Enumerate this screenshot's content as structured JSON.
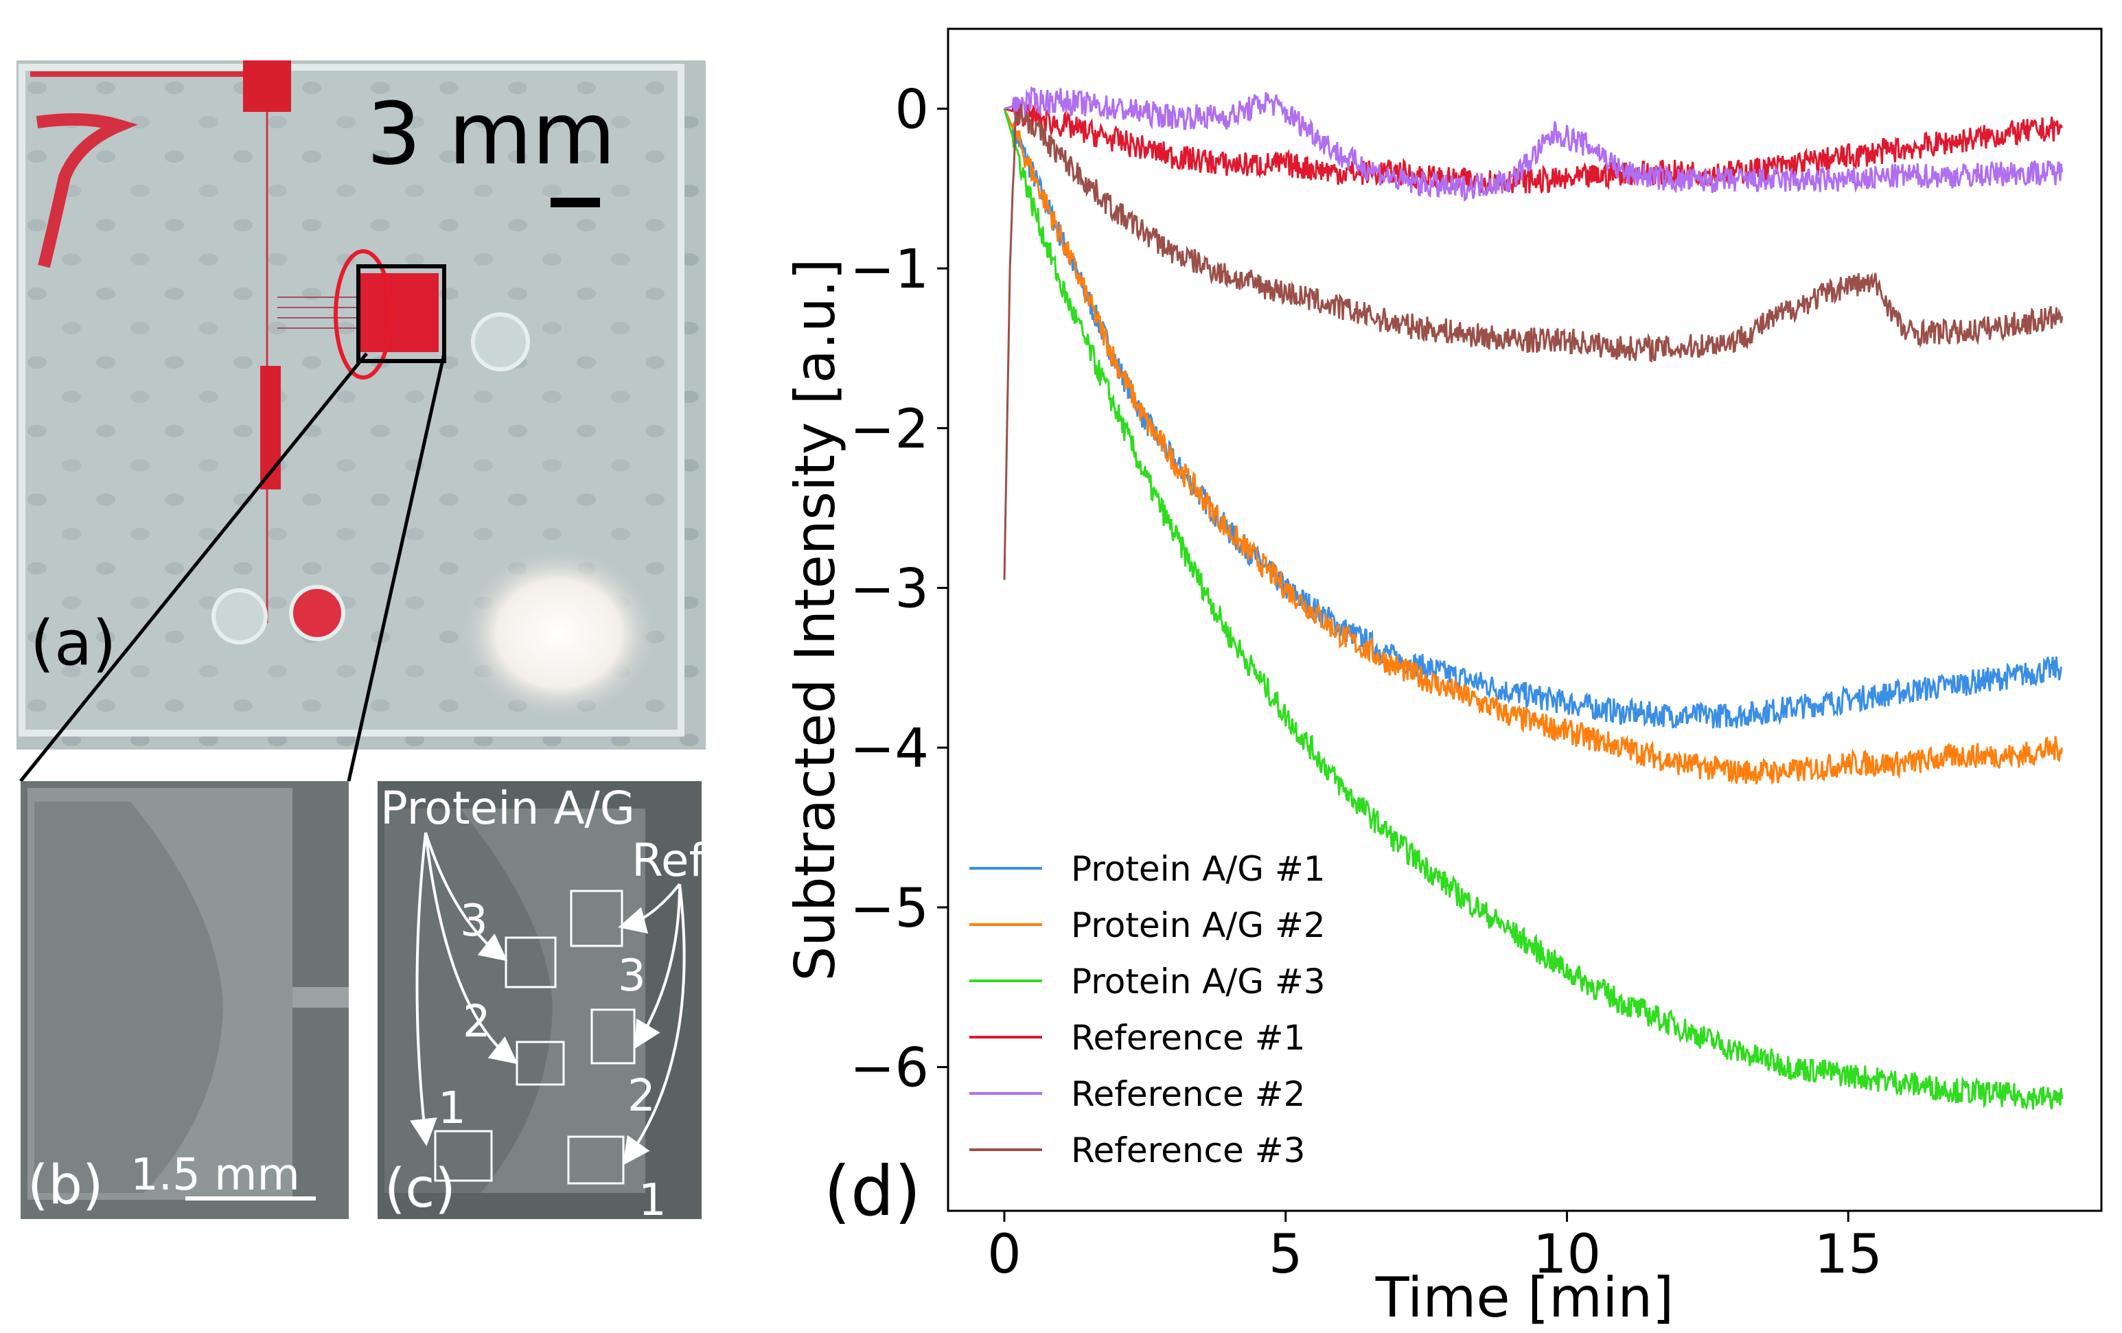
{
  "photo_panels": {
    "a": {
      "label": "(a)",
      "scale_text": "3 mm"
    },
    "b": {
      "label": "(b)",
      "scale_text": "1.5 mm"
    },
    "c": {
      "label": "(c)",
      "protein_label": "Protein A/G",
      "ref_label": "Ref",
      "protein_numbers": [
        "3",
        "2",
        "1"
      ],
      "ref_numbers": [
        "3",
        "2",
        "1"
      ]
    }
  },
  "colors": {
    "blue": "#3a8ee6",
    "orange": "#ff7f0e",
    "green": "#2fdc1e",
    "red": "#e0182e",
    "purple": "#b06ef2",
    "brown": "#9a5048"
  },
  "chart_data": {
    "type": "line",
    "panel_label": "(d)",
    "xlabel": "Time [min]",
    "ylabel": "Subtracted Intensity [a.u.]",
    "xlim": [
      -1,
      19.5
    ],
    "ylim": [
      -6.9,
      0.5
    ],
    "xticks": [
      0,
      5,
      10,
      15
    ],
    "yticks": [
      0,
      -1,
      -2,
      -3,
      -4,
      -5,
      -6
    ],
    "xtick_labels": [
      "0",
      "5",
      "10",
      "15"
    ],
    "ytick_labels": [
      "0",
      "−1",
      "−2",
      "−3",
      "−4",
      "−5",
      "−6"
    ],
    "grid": false,
    "legend_position": "bottom-left",
    "series": [
      {
        "name": "Protein A/G #1",
        "color": "#3a8ee6",
        "x": [
          0,
          0.5,
          1,
          1.5,
          2,
          2.5,
          3,
          4,
          5,
          6,
          7,
          8,
          9,
          10,
          11,
          12,
          13,
          14,
          15,
          16,
          17,
          18,
          18.8
        ],
        "y": [
          0,
          -0.4,
          -0.8,
          -1.2,
          -1.6,
          -1.95,
          -2.2,
          -2.65,
          -3.0,
          -3.25,
          -3.45,
          -3.55,
          -3.65,
          -3.72,
          -3.78,
          -3.8,
          -3.8,
          -3.75,
          -3.7,
          -3.65,
          -3.6,
          -3.55,
          -3.5
        ]
      },
      {
        "name": "Protein A/G #2",
        "color": "#ff7f0e",
        "x": [
          0,
          0.5,
          1,
          1.5,
          2,
          2.5,
          3,
          4,
          5,
          6,
          7,
          8,
          9,
          10,
          11,
          12,
          13,
          14,
          15,
          16,
          17,
          18,
          18.8
        ],
        "y": [
          0,
          -0.4,
          -0.8,
          -1.2,
          -1.6,
          -1.95,
          -2.2,
          -2.65,
          -3.0,
          -3.3,
          -3.5,
          -3.65,
          -3.8,
          -3.9,
          -4.0,
          -4.1,
          -4.15,
          -4.15,
          -4.1,
          -4.1,
          -4.05,
          -4.05,
          -4.0
        ]
      },
      {
        "name": "Protein A/G #3",
        "color": "#2fdc1e",
        "x": [
          0,
          0.5,
          1,
          1.5,
          2,
          2.5,
          3,
          4,
          5,
          6,
          7,
          8,
          9,
          10,
          11,
          12,
          13,
          14,
          15,
          16,
          17,
          18,
          18.8
        ],
        "y": [
          0,
          -0.6,
          -1.1,
          -1.5,
          -1.9,
          -2.3,
          -2.65,
          -3.3,
          -3.8,
          -4.25,
          -4.6,
          -4.9,
          -5.15,
          -5.4,
          -5.6,
          -5.75,
          -5.9,
          -6.0,
          -6.05,
          -6.1,
          -6.15,
          -6.18,
          -6.2
        ]
      },
      {
        "name": "Reference #1",
        "color": "#e0182e",
        "x": [
          0,
          0.5,
          1,
          2,
          3,
          4,
          5,
          6,
          7,
          8,
          9,
          10,
          11,
          12,
          13,
          14,
          15,
          16,
          17,
          18,
          18.8
        ],
        "y": [
          0,
          -0.05,
          -0.1,
          -0.2,
          -0.3,
          -0.35,
          -0.35,
          -0.4,
          -0.4,
          -0.45,
          -0.45,
          -0.45,
          -0.4,
          -0.4,
          -0.4,
          -0.35,
          -0.3,
          -0.25,
          -0.2,
          -0.15,
          -0.12
        ]
      },
      {
        "name": "Reference #2",
        "color": "#b06ef2",
        "x": [
          0,
          0.5,
          1,
          2,
          3,
          4,
          4.7,
          5.5,
          6,
          7,
          8,
          9,
          9.8,
          10.5,
          11,
          12,
          13,
          14,
          15,
          16,
          17,
          18,
          18.8
        ],
        "y": [
          0,
          0.05,
          0.05,
          0.0,
          -0.05,
          -0.05,
          0.05,
          -0.15,
          -0.3,
          -0.45,
          -0.5,
          -0.45,
          -0.15,
          -0.25,
          -0.4,
          -0.45,
          -0.45,
          -0.45,
          -0.45,
          -0.42,
          -0.42,
          -0.4,
          -0.4
        ]
      },
      {
        "name": "Reference #3",
        "color": "#9a5048",
        "x": [
          0,
          0.1,
          0.2,
          0.5,
          1,
          2,
          3,
          4,
          5,
          6,
          7,
          8,
          9,
          10,
          11,
          12,
          13,
          14,
          15,
          15.5,
          16,
          17,
          18,
          18.8
        ],
        "y": [
          -2.95,
          -1.0,
          0.0,
          -0.1,
          -0.3,
          -0.65,
          -0.9,
          -1.05,
          -1.15,
          -1.25,
          -1.35,
          -1.4,
          -1.45,
          -1.45,
          -1.5,
          -1.5,
          -1.45,
          -1.25,
          -1.1,
          -1.1,
          -1.4,
          -1.4,
          -1.35,
          -1.3
        ]
      }
    ]
  }
}
